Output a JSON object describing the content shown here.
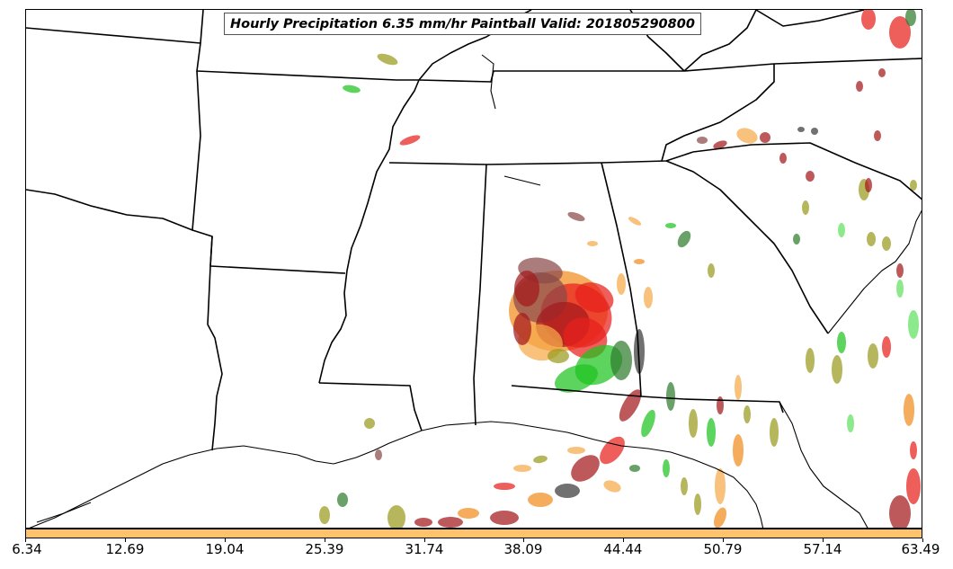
{
  "title": "Hourly Precipitation 6.35 mm/hr Paintball Valid: 201805290800",
  "colorbar": {
    "color": "#ffc46b",
    "ticks": [
      "6.34",
      "12.69",
      "19.04",
      "25.39",
      "31.74",
      "38.09",
      "44.44",
      "50.79",
      "57.14",
      "63.49"
    ]
  },
  "colors": {
    "member_red": "#e8201c",
    "member_darkred": "#a3191c",
    "member_orange": "#f28c1e",
    "member_lightorange": "#f5a94a",
    "member_green": "#1fc41f",
    "member_darkgreen": "#2f7d2f",
    "member_olive": "#9a9a1e",
    "member_brown": "#8b4a4a",
    "member_darkgray": "#3a3a3a",
    "member_lightgreen": "#5fe05f"
  },
  "icons": [
    "map-coastline",
    "state-boundaries",
    "precipitation-blobs"
  ]
}
